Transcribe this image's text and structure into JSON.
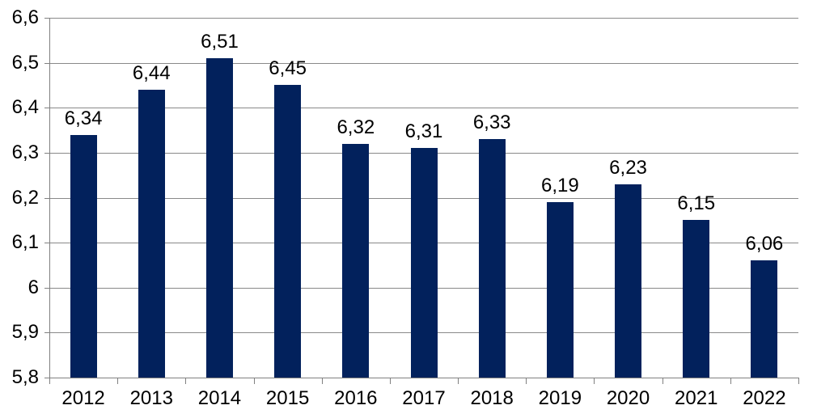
{
  "chart_data": {
    "type": "bar",
    "title": "",
    "xlabel": "",
    "ylabel": "",
    "categories": [
      "2012",
      "2013",
      "2014",
      "2015",
      "2016",
      "2017",
      "2018",
      "2019",
      "2020",
      "2021",
      "2022"
    ],
    "values": [
      6.34,
      6.44,
      6.51,
      6.45,
      6.32,
      6.31,
      6.33,
      6.19,
      6.23,
      6.15,
      6.06
    ],
    "value_labels": [
      "6,34",
      "6,44",
      "6,51",
      "6,45",
      "6,32",
      "6,31",
      "6,33",
      "6,19",
      "6,23",
      "6,15",
      "6,06"
    ],
    "ylim": [
      5.8,
      6.6
    ],
    "ytick_values": [
      5.8,
      5.9,
      6.0,
      6.1,
      6.2,
      6.3,
      6.4,
      6.5,
      6.6
    ],
    "ytick_labels": [
      "5,8",
      "5,9",
      "6",
      "6,1",
      "6,2",
      "6,3",
      "6,4",
      "6,5",
      "6,6"
    ],
    "grid": true,
    "legend_position": "none",
    "decimal_separator": ",",
    "colors": {
      "bar": "#02215C",
      "gridline": "#898989",
      "axis": "#808080",
      "text": "#000000",
      "background": "#FFFFFF"
    }
  }
}
